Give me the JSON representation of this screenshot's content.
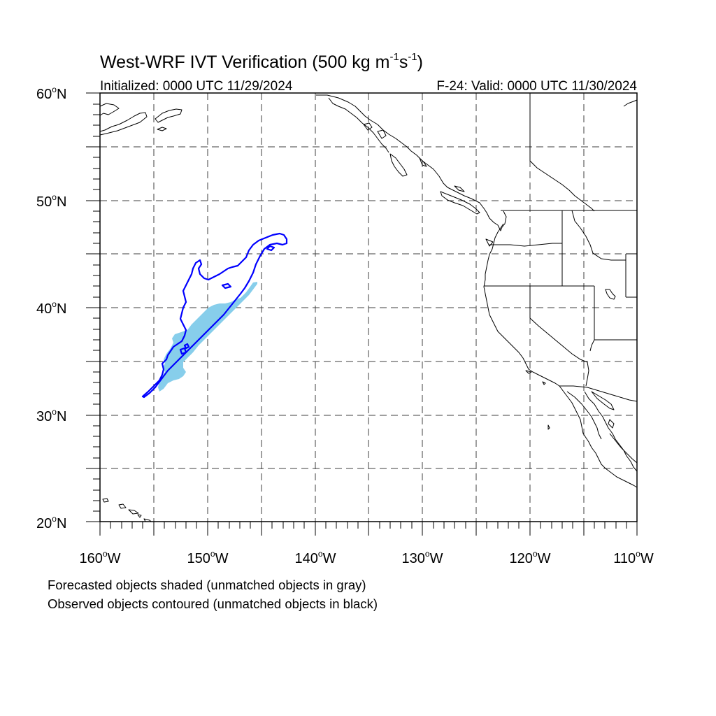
{
  "title": {
    "main": "West-WRF IVT Verification (500 kg m",
    "unit_m_exp": "-1",
    "unit_s": "s",
    "unit_s_exp": "-1",
    "close": ")"
  },
  "subtitle": {
    "left": "Initialized: 0000 UTC 11/29/2024",
    "right": "F-24: Valid: 0000 UTC 11/30/2024"
  },
  "lat_labels": [
    {
      "deg": "60",
      "hem": "N"
    },
    {
      "deg": "50",
      "hem": "N"
    },
    {
      "deg": "40",
      "hem": "N"
    },
    {
      "deg": "30",
      "hem": "N"
    },
    {
      "deg": "20",
      "hem": "N"
    }
  ],
  "lon_labels": [
    {
      "deg": "160",
      "hem": "W"
    },
    {
      "deg": "150",
      "hem": "W"
    },
    {
      "deg": "140",
      "hem": "W"
    },
    {
      "deg": "130",
      "hem": "W"
    },
    {
      "deg": "120",
      "hem": "W"
    },
    {
      "deg": "110",
      "hem": "W"
    }
  ],
  "footer": {
    "line1": "Forecasted objects shaded (unmatched objects in gray)",
    "line2": "Observed objects contoured (unmatched objects in black)"
  },
  "colors": {
    "forecast_fill": "#87ceeb",
    "observed_contour": "#0000ff",
    "coastline": "#000000",
    "grid": "#000000"
  }
}
